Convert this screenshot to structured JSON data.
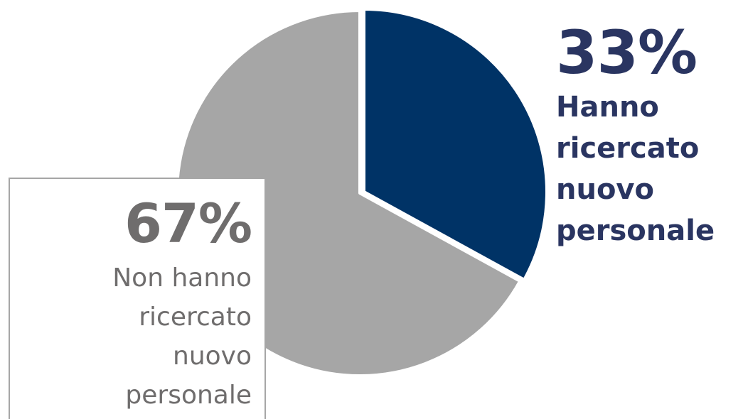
{
  "chart_data": {
    "type": "pie",
    "slices": [
      {
        "value": 33,
        "percent_label": "33%",
        "label": "Hanno\nricercato\nnuovo\npersonale",
        "color": "#003366"
      },
      {
        "value": 67,
        "percent_label": "67%",
        "label": "Non hanno\nricercato\nnuovo\npersonale",
        "color": "#a6a6a6"
      }
    ],
    "start_angle_deg": 0,
    "direction": "clockwise"
  }
}
